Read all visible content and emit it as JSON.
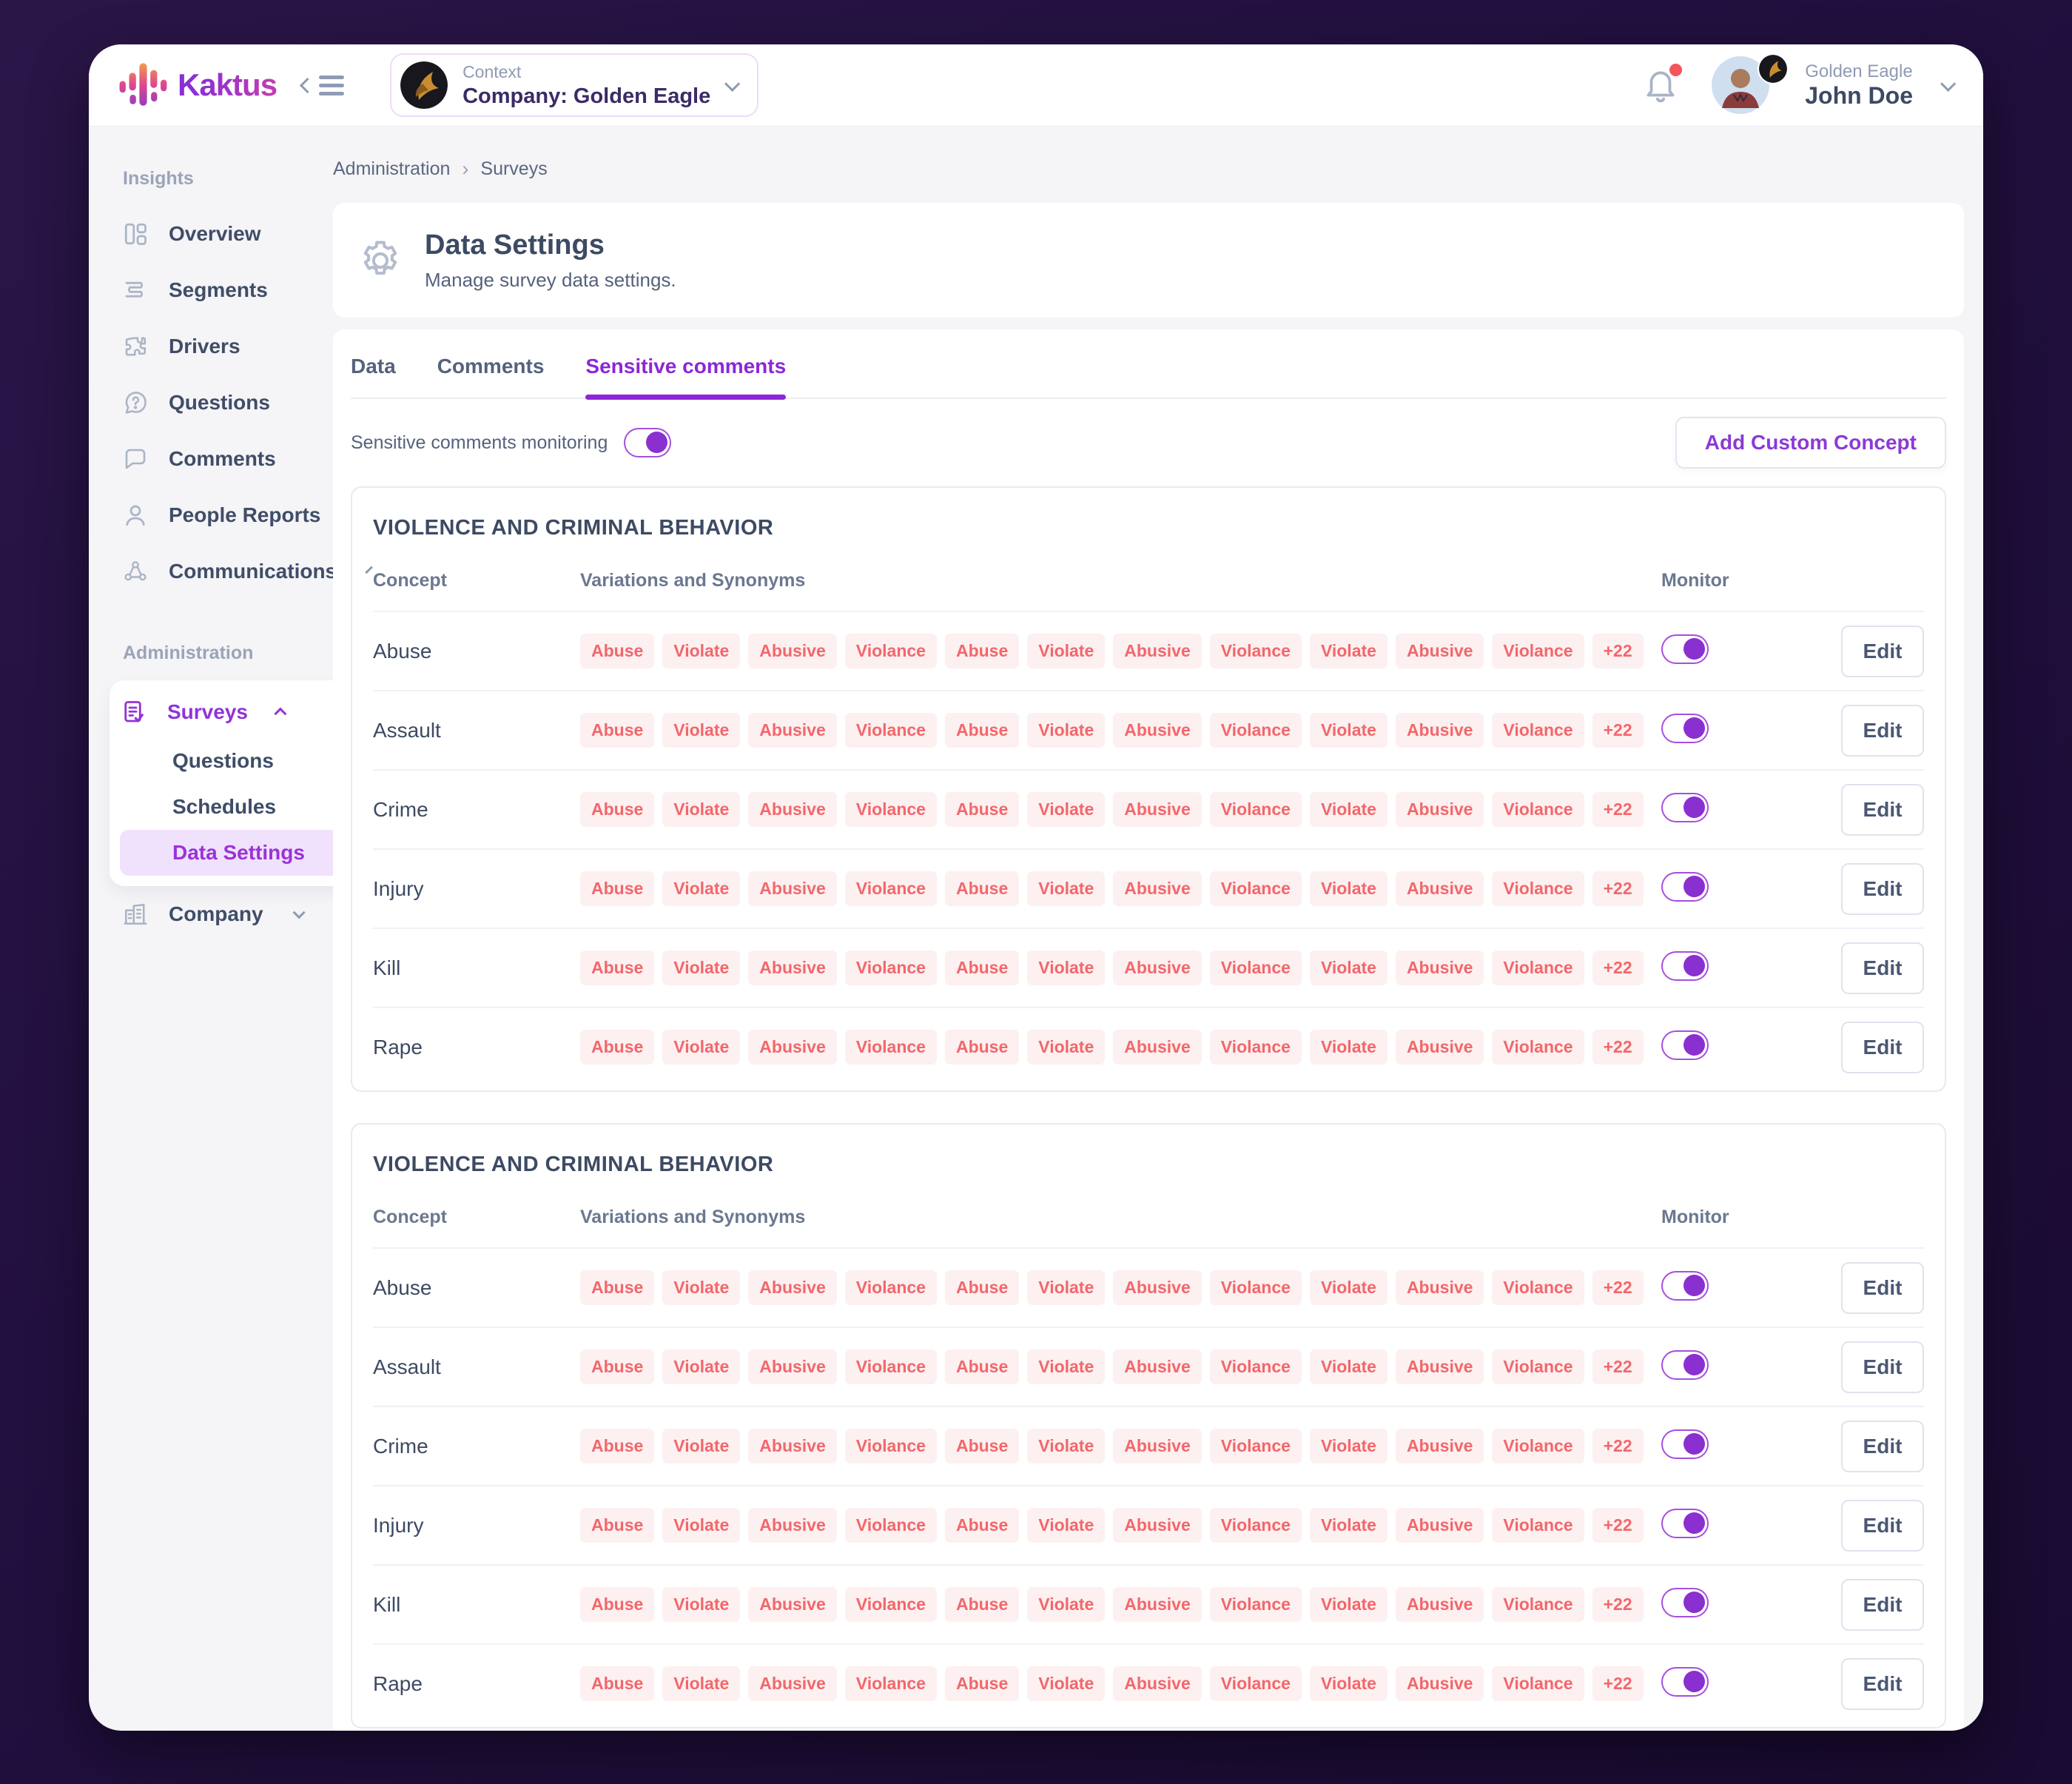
{
  "app": {
    "brand": "Kaktus"
  },
  "topbar": {
    "context": {
      "label": "Context",
      "value": "Company: Golden Eagle"
    },
    "user": {
      "org": "Golden Eagle",
      "name": "John Doe"
    }
  },
  "sidebar": {
    "sections": [
      {
        "label": "Insights",
        "items": [
          {
            "label": "Overview",
            "icon": "overview-icon"
          },
          {
            "label": "Segments",
            "icon": "segments-icon"
          },
          {
            "label": "Drivers",
            "icon": "drivers-icon"
          },
          {
            "label": "Questions",
            "icon": "questions-icon"
          },
          {
            "label": "Comments",
            "icon": "comments-icon"
          },
          {
            "label": "People Reports",
            "icon": "people-reports-icon"
          },
          {
            "label": "Communications",
            "icon": "communications-icon",
            "chevron": "down"
          }
        ]
      },
      {
        "label": "Administration",
        "items": [
          {
            "label": "Surveys",
            "icon": "surveys-icon",
            "chevron": "up",
            "active": true,
            "children": [
              {
                "label": "Questions",
                "active": false
              },
              {
                "label": "Schedules",
                "active": false
              },
              {
                "label": "Data Settings",
                "active": true
              }
            ]
          },
          {
            "label": "Company",
            "icon": "company-icon",
            "chevron": "down"
          }
        ]
      }
    ]
  },
  "breadcrumb": {
    "items": [
      "Administration",
      "Surveys"
    ]
  },
  "page_header": {
    "title": "Data Settings",
    "subtitle": "Manage survey data settings."
  },
  "tabs": [
    {
      "label": "Data",
      "active": false
    },
    {
      "label": "Comments",
      "active": false
    },
    {
      "label": "Sensitive comments",
      "active": true
    }
  ],
  "monitoring_toggle": {
    "label": "Sensitive comments monitoring",
    "enabled": true
  },
  "actions": {
    "add_custom_concept": "Add Custom Concept"
  },
  "columns": {
    "concept": "Concept",
    "variations": "Variations and Synonyms",
    "monitor": "Monitor"
  },
  "edit_label": "Edit",
  "concept_tables": [
    {
      "title": "VIOLENCE AND CRIMINAL BEHAVIOR",
      "rows": [
        {
          "concept": "Abuse",
          "tags": [
            "Abuse",
            "Violate",
            "Abusive",
            "Violance",
            "Abuse",
            "Violate",
            "Abusive",
            "Violance",
            "Violate",
            "Abusive",
            "Violance"
          ],
          "more": "+22",
          "monitor": true
        },
        {
          "concept": "Assault",
          "tags": [
            "Abuse",
            "Violate",
            "Abusive",
            "Violance",
            "Abuse",
            "Violate",
            "Abusive",
            "Violance",
            "Violate",
            "Abusive",
            "Violance"
          ],
          "more": "+22",
          "monitor": true
        },
        {
          "concept": "Crime",
          "tags": [
            "Abuse",
            "Violate",
            "Abusive",
            "Violance",
            "Abuse",
            "Violate",
            "Abusive",
            "Violance",
            "Violate",
            "Abusive",
            "Violance"
          ],
          "more": "+22",
          "monitor": true
        },
        {
          "concept": "Injury",
          "tags": [
            "Abuse",
            "Violate",
            "Abusive",
            "Violance",
            "Abuse",
            "Violate",
            "Abusive",
            "Violance",
            "Violate",
            "Abusive",
            "Violance"
          ],
          "more": "+22",
          "monitor": true
        },
        {
          "concept": "Kill",
          "tags": [
            "Abuse",
            "Violate",
            "Abusive",
            "Violance",
            "Abuse",
            "Violate",
            "Abusive",
            "Violance",
            "Violate",
            "Abusive",
            "Violance"
          ],
          "more": "+22",
          "monitor": true
        },
        {
          "concept": "Rape",
          "tags": [
            "Abuse",
            "Violate",
            "Abusive",
            "Violance",
            "Abuse",
            "Violate",
            "Abusive",
            "Violance",
            "Violate",
            "Abusive",
            "Violance"
          ],
          "more": "+22",
          "monitor": true
        }
      ]
    },
    {
      "title": "VIOLENCE AND CRIMINAL BEHAVIOR",
      "rows": [
        {
          "concept": "Abuse",
          "tags": [
            "Abuse",
            "Violate",
            "Abusive",
            "Violance",
            "Abuse",
            "Violate",
            "Abusive",
            "Violance",
            "Violate",
            "Abusive",
            "Violance"
          ],
          "more": "+22",
          "monitor": true
        },
        {
          "concept": "Assault",
          "tags": [
            "Abuse",
            "Violate",
            "Abusive",
            "Violance",
            "Abuse",
            "Violate",
            "Abusive",
            "Violance",
            "Violate",
            "Abusive",
            "Violance"
          ],
          "more": "+22",
          "monitor": true
        },
        {
          "concept": "Crime",
          "tags": [
            "Abuse",
            "Violate",
            "Abusive",
            "Violance",
            "Abuse",
            "Violate",
            "Abusive",
            "Violance",
            "Violate",
            "Abusive",
            "Violance"
          ],
          "more": "+22",
          "monitor": true
        },
        {
          "concept": "Injury",
          "tags": [
            "Abuse",
            "Violate",
            "Abusive",
            "Violance",
            "Abuse",
            "Violate",
            "Abusive",
            "Violance",
            "Violate",
            "Abusive",
            "Violance"
          ],
          "more": "+22",
          "monitor": true
        },
        {
          "concept": "Kill",
          "tags": [
            "Abuse",
            "Violate",
            "Abusive",
            "Violance",
            "Abuse",
            "Violate",
            "Abusive",
            "Violance",
            "Violate",
            "Abusive",
            "Violance"
          ],
          "more": "+22",
          "monitor": true
        },
        {
          "concept": "Rape",
          "tags": [
            "Abuse",
            "Violate",
            "Abusive",
            "Violance",
            "Abuse",
            "Violate",
            "Abusive",
            "Violance",
            "Violate",
            "Abusive",
            "Violance"
          ],
          "more": "+22",
          "monitor": true
        }
      ]
    }
  ],
  "colors": {
    "accent": "#8b27d8",
    "accent_light_bg": "#f0e2fc",
    "tag_text": "#f2676b",
    "tag_bg": "#fdf0f0",
    "notification_dot": "#f4545c",
    "background_dark": "#221040"
  }
}
